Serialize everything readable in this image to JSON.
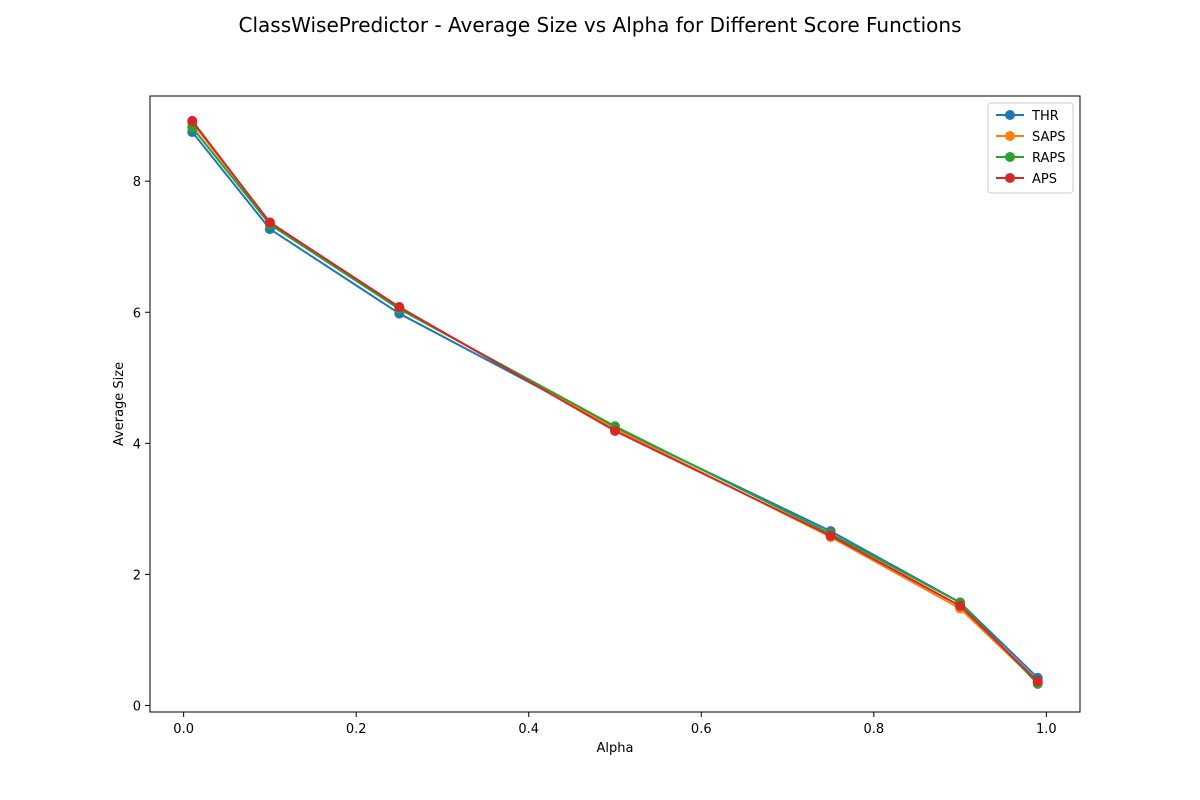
{
  "chart_data": {
    "type": "line",
    "title": "ClassWisePredictor - Average Size vs Alpha for Different Score Functions",
    "xlabel": "Alpha",
    "ylabel": "Average Size",
    "x": [
      0.01,
      0.1,
      0.25,
      0.5,
      0.75,
      0.9,
      0.99
    ],
    "xlim": [
      -0.039,
      1.039
    ],
    "ylim": [
      -0.1,
      9.3
    ],
    "xticks": [
      0.0,
      0.2,
      0.4,
      0.6,
      0.8,
      1.0
    ],
    "xtick_labels": [
      "0.0",
      "0.2",
      "0.4",
      "0.6",
      "0.8",
      "1.0"
    ],
    "yticks": [
      0,
      2,
      4,
      6,
      8
    ],
    "ytick_labels": [
      "0",
      "2",
      "4",
      "6",
      "8"
    ],
    "grid": false,
    "legend_position": "top-right",
    "series": [
      {
        "name": "THR",
        "color": "#1f77b4",
        "marker": "circle",
        "values": [
          8.75,
          7.27,
          5.98,
          4.24,
          2.66,
          1.57,
          0.42
        ]
      },
      {
        "name": "SAPS",
        "color": "#ff7f0e",
        "marker": "circle",
        "values": [
          8.89,
          7.37,
          6.07,
          4.22,
          2.57,
          1.48,
          0.35
        ]
      },
      {
        "name": "RAPS",
        "color": "#2ca02c",
        "marker": "circle",
        "values": [
          8.82,
          7.34,
          6.05,
          4.26,
          2.62,
          1.57,
          0.33
        ]
      },
      {
        "name": "APS",
        "color": "#d62728",
        "marker": "circle",
        "values": [
          8.92,
          7.37,
          6.08,
          4.19,
          2.59,
          1.52,
          0.37
        ]
      }
    ]
  }
}
